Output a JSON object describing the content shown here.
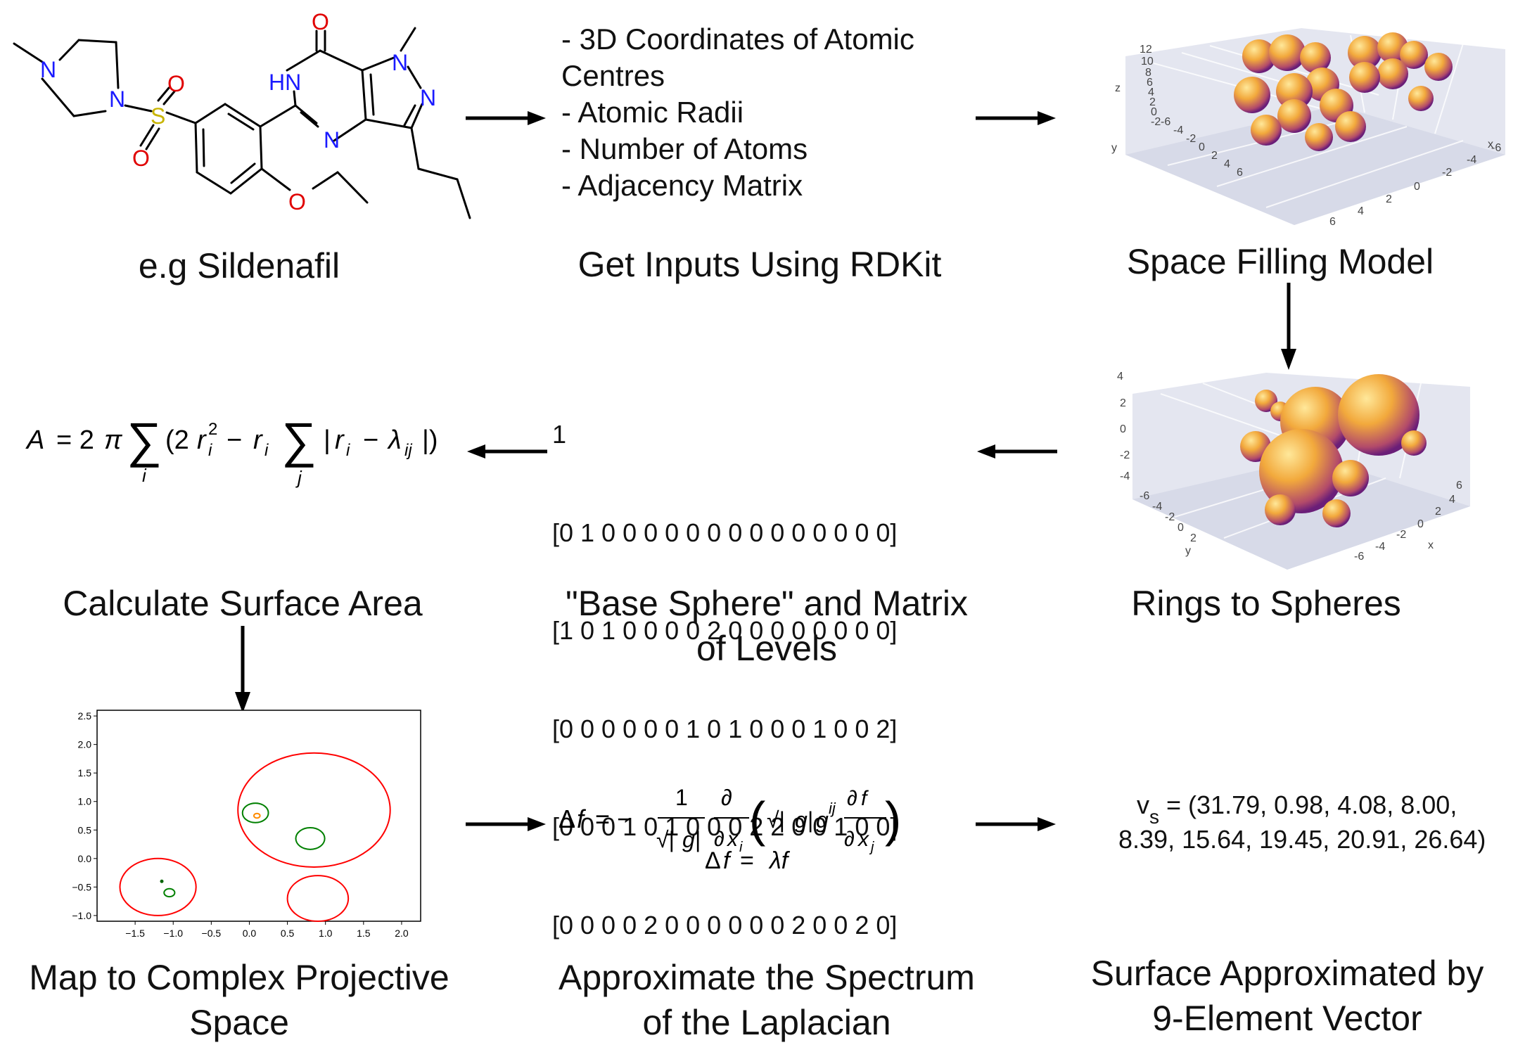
{
  "molecule": {
    "atoms": {
      "O_carbonyl": "O",
      "N_methyl": "N",
      "HN": "HN",
      "N_pyrazole": "N",
      "N_pyrimidine": "N",
      "N_piperazine1": "N",
      "N_piperazine2": "N",
      "S": "S",
      "O_s1": "O",
      "O_s2": "O",
      "O_ether": "O"
    },
    "caption": "e.g Sildenafil"
  },
  "inputs": {
    "items": [
      "- 3D Coordinates of Atomic",
      "Centres",
      "- Atomic Radii",
      "- Number of Atoms",
      "- Adjacency Matrix"
    ],
    "caption": "Get Inputs Using RDKit"
  },
  "space_filling": {
    "caption": "Space Filling Model",
    "axis_labels": {
      "z": "z",
      "y": "y",
      "x": "x"
    },
    "z_ticks": [
      "12",
      "10",
      "8",
      "6",
      "4",
      "2",
      "0",
      "-2"
    ],
    "y_ticks": [
      "-6",
      "-4",
      "-2",
      "0",
      "2",
      "4",
      "6"
    ],
    "x_ticks": [
      "6",
      "4",
      "2",
      "0",
      "-2",
      "-4",
      "-6"
    ],
    "sphere_color": "#e89a33"
  },
  "rings": {
    "caption": "Rings to Spheres",
    "axis_labels": {
      "y": "y",
      "x": "x"
    },
    "z_ticks": [
      "4",
      "2",
      "0",
      "-2",
      "-4"
    ],
    "y_ticks": [
      "-6",
      "-4",
      "-2",
      "0",
      "2"
    ],
    "x_ticks": [
      "6",
      "4",
      "2",
      "0",
      "-2",
      "-4",
      "-6"
    ]
  },
  "matrix": {
    "rows": [
      "1",
      "[0 1 0 0 0 0 0 0 0 0 0 0 0 0 0 0]",
      "[1 0 1 0 0 0 0 2 0 0 0 0 0 0 0 0]",
      "[0 0 0 0 0 0 1 0 1 0 0 0 1 0 0 2]",
      "[0 0 0 1 0 1 0 0 0 2 2 0 0 1 0 0]",
      "[0 0 0 0 2 0 0 0 0 0 0 2 0 0 2 0]"
    ],
    "caption_line1": "\"Base Sphere\" and Matrix",
    "caption_line2": "of Levels"
  },
  "surface_area": {
    "formula_text": "A = 2π Σᵢ (2rᵢ² − rᵢ Σⱼ |rᵢ − λᵢⱼ|)",
    "caption": "Calculate Surface Area"
  },
  "projective_plot": {
    "caption_line1": "Map to Complex Projective",
    "caption_line2": "Space",
    "x_ticks": [
      "−1.5",
      "−1.0",
      "−0.5",
      "0.0",
      "0.5",
      "1.0",
      "1.5",
      "2.0"
    ],
    "y_ticks": [
      "2.5",
      "2.0",
      "1.5",
      "1.0",
      "0.5",
      "0.0",
      "−0.5",
      "−1.0"
    ],
    "chart_data": {
      "type": "scatter",
      "xlim": [
        -2.0,
        2.25
      ],
      "ylim": [
        -1.1,
        2.6
      ],
      "circles": [
        {
          "cx": 0.85,
          "cy": 0.85,
          "r": 1.0,
          "color": "#ff0000"
        },
        {
          "cx": -1.2,
          "cy": -0.5,
          "r": 0.5,
          "color": "#ff0000"
        },
        {
          "cx": 0.9,
          "cy": -0.7,
          "r": 0.4,
          "color": "#ff0000"
        },
        {
          "cx": 0.08,
          "cy": 0.8,
          "r": 0.17,
          "color": "#008000"
        },
        {
          "cx": 0.8,
          "cy": 0.35,
          "r": 0.19,
          "color": "#008000"
        },
        {
          "cx": -1.05,
          "cy": -0.6,
          "r": 0.07,
          "color": "#008000"
        },
        {
          "cx": 0.1,
          "cy": 0.75,
          "r": 0.04,
          "color": "#ff8c00"
        }
      ],
      "points": [
        {
          "x": -1.15,
          "y": -0.4,
          "color": "#006400"
        }
      ]
    }
  },
  "laplacian": {
    "eq1": "Δf = − 1/√|g| ∂/∂xᵢ ( √|g| gⁱʲ ∂f/∂xⱼ )",
    "eq2": "Δf = λf",
    "caption_line1": "Approximate the Spectrum",
    "caption_line2": "of the Laplacian"
  },
  "vector": {
    "symbol": "v",
    "subscript": "s",
    "line1": "= (31.79, 0.98, 4.08, 8.00,",
    "line2": "8.39, 15.64, 19.45, 20.91, 26.64)",
    "caption_line1": "Surface Approximated by",
    "caption_line2": "9-Element Vector"
  }
}
